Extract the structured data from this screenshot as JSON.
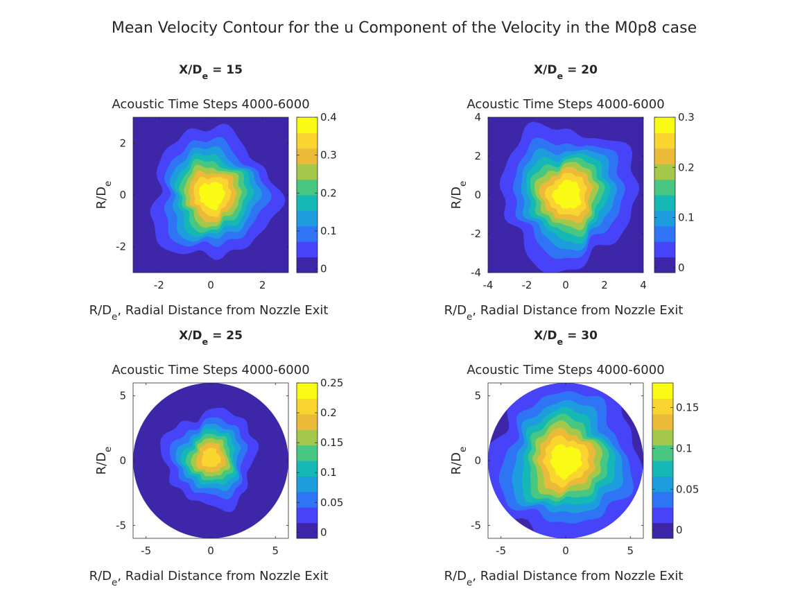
{
  "figure_title": "Mean Velocity Contour for the u Component of the Velocity in the M0p8 case",
  "colormap": [
    "#3e26a8",
    "#4743f8",
    "#2f74f5",
    "#1d9cde",
    "#15b8b5",
    "#48c783",
    "#a4c94a",
    "#ecba39",
    "#fad530",
    "#f9fb15"
  ],
  "chart_data": [
    {
      "type": "contour",
      "panel_title_main": "X/D",
      "panel_title_sub": "e",
      "panel_title_tail": " = 15",
      "subtitle": "Acoustic Time Steps 4000-6000",
      "xlabel_main": "R/D",
      "xlabel_sub": "e",
      "xlabel_tail": ", Radial Distance from Nozzle Exit",
      "ylabel_main": "R/D",
      "ylabel_sub": "e",
      "domain": "square",
      "xlim": [
        -3,
        3
      ],
      "ylim": [
        -3,
        3
      ],
      "xticks": [
        -2,
        0,
        2
      ],
      "yticks": [
        -2,
        0,
        2
      ],
      "xtick_labels": [
        "-2",
        "0",
        "2"
      ],
      "ytick_labels": [
        "-2",
        "0",
        "2"
      ],
      "clim": [
        -0.01,
        0.4
      ],
      "cbar_ticks": [
        0,
        0.1,
        0.2,
        0.3,
        0.4
      ],
      "cbar_tick_labels": [
        "0",
        "0.1",
        "0.2",
        "0.3",
        "0.4"
      ],
      "peak_value": 0.4,
      "center": [
        0.05,
        0.0
      ],
      "core_radius": 1.05
    },
    {
      "type": "contour",
      "panel_title_main": "X/D",
      "panel_title_sub": "e",
      "panel_title_tail": " = 20",
      "subtitle": "Acoustic Time Steps 4000-6000",
      "xlabel_main": "R/D",
      "xlabel_sub": "e",
      "xlabel_tail": ", Radial Distance from Nozzle Exit",
      "ylabel_main": "R/D",
      "ylabel_sub": "e",
      "domain": "square",
      "xlim": [
        -4,
        4
      ],
      "ylim": [
        -4,
        4
      ],
      "xticks": [
        -4,
        -2,
        0,
        2,
        4
      ],
      "yticks": [
        -4,
        -2,
        0,
        2,
        4
      ],
      "xtick_labels": [
        "-4",
        "-2",
        "0",
        "2",
        "4"
      ],
      "ytick_labels": [
        "-4",
        "-2",
        "0",
        "2",
        "4"
      ],
      "clim": [
        -0.01,
        0.3
      ],
      "cbar_ticks": [
        0,
        0.1,
        0.2,
        0.3
      ],
      "cbar_tick_labels": [
        "0",
        "0.1",
        "0.2",
        "0.3"
      ],
      "peak_value": 0.3,
      "center": [
        0.1,
        0.0
      ],
      "core_radius": 1.5
    },
    {
      "type": "contour",
      "panel_title_main": "X/D",
      "panel_title_sub": "e",
      "panel_title_tail": " = 25",
      "subtitle": "Acoustic Time Steps 4000-6000",
      "xlabel_main": "R/D",
      "xlabel_sub": "e",
      "xlabel_tail": ", Radial Distance from Nozzle Exit",
      "ylabel_main": "R/D",
      "ylabel_sub": "e",
      "domain": "circle",
      "domain_radius": 6,
      "xlim": [
        -6,
        6
      ],
      "ylim": [
        -6,
        6
      ],
      "xticks": [
        -5,
        0,
        5
      ],
      "yticks": [
        -5,
        0,
        5
      ],
      "xtick_labels": [
        "-5",
        "0",
        "5"
      ],
      "ytick_labels": [
        "-5",
        "0",
        "5"
      ],
      "clim": [
        -0.01,
        0.25
      ],
      "cbar_ticks": [
        0,
        0.05,
        0.1,
        0.15,
        0.2,
        0.25
      ],
      "cbar_tick_labels": [
        "0",
        "0.05",
        "0.1",
        "0.15",
        "0.2",
        "0.25"
      ],
      "peak_value": 0.22,
      "center": [
        0.0,
        0.2
      ],
      "core_radius": 1.55
    },
    {
      "type": "contour",
      "panel_title_main": "X/D",
      "panel_title_sub": "e",
      "panel_title_tail": " = 30",
      "subtitle": "Acoustic Time Steps 4000-6000",
      "xlabel_main": "R/D",
      "xlabel_sub": "e",
      "xlabel_tail": ", Radial Distance from Nozzle Exit",
      "ylabel_main": "R/D",
      "ylabel_sub": "e",
      "domain": "circle",
      "domain_radius": 6,
      "xlim": [
        -6,
        6
      ],
      "ylim": [
        -6,
        6
      ],
      "xticks": [
        -5,
        0,
        5
      ],
      "yticks": [
        -5,
        0,
        5
      ],
      "xtick_labels": [
        "-5",
        "0",
        "5"
      ],
      "ytick_labels": [
        "-5",
        "0",
        "5"
      ],
      "clim": [
        -0.01,
        0.18
      ],
      "cbar_ticks": [
        0,
        0.05,
        0.1,
        0.15
      ],
      "cbar_tick_labels": [
        "0",
        "0.05",
        "0.1",
        "0.15"
      ],
      "peak_value": 0.18,
      "center": [
        0.0,
        0.0
      ],
      "core_radius": 2.5
    }
  ]
}
